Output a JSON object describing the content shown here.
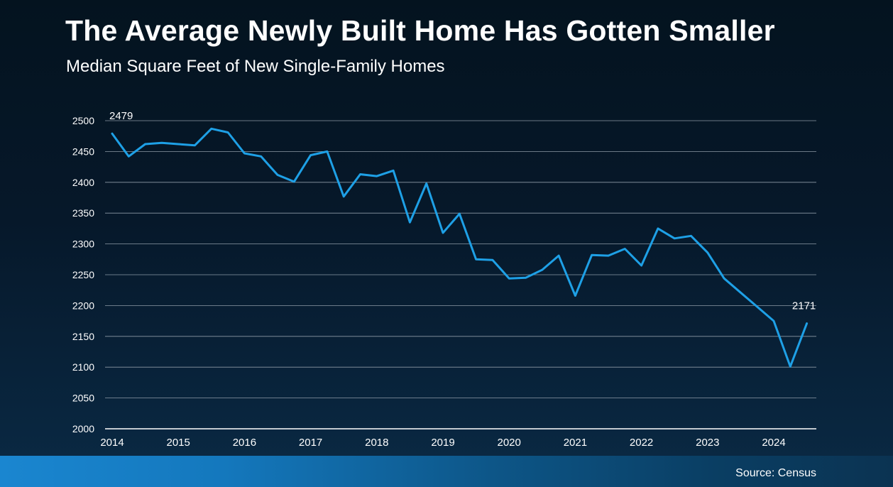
{
  "header": {
    "title": "The Average Newly Built Home Has Gotten Smaller",
    "subtitle": "Median Square Feet of New Single-Family Homes"
  },
  "footer": {
    "source": "Source: Census"
  },
  "colors": {
    "line": "#1ea0e6",
    "grid": "#8d9aa6",
    "axis": "#ffffff"
  },
  "chart_data": {
    "type": "line",
    "title": "The Average Newly Built Home Has Gotten Smaller",
    "subtitle": "Median Square Feet of New Single-Family Homes",
    "xlabel": "",
    "ylabel": "",
    "ylim": [
      2000,
      2500
    ],
    "yticks": [
      2000,
      2050,
      2100,
      2150,
      2200,
      2250,
      2300,
      2350,
      2400,
      2450,
      2500
    ],
    "xticks": [
      "2014",
      "2015",
      "2016",
      "2017",
      "2018",
      "2019",
      "2020",
      "2021",
      "2022",
      "2023",
      "2024"
    ],
    "grid": true,
    "series": [
      {
        "values": [
          2479,
          2442,
          2462,
          2464,
          2462,
          2460,
          2487,
          2481,
          2447,
          2442,
          2412,
          2401,
          2444,
          2450,
          2377,
          2413,
          2410,
          2419,
          2335,
          2398,
          2318,
          2349,
          2275,
          2274,
          2244,
          2245,
          2258,
          2281,
          2216,
          2282,
          2281,
          2292,
          2265,
          2325,
          2309,
          2313,
          2286,
          2244,
          2221,
          2198,
          2175,
          2101,
          2171
        ]
      }
    ],
    "annotations": [
      {
        "index": 0,
        "text": "2479"
      },
      {
        "index": 42,
        "text": "2171"
      }
    ]
  }
}
